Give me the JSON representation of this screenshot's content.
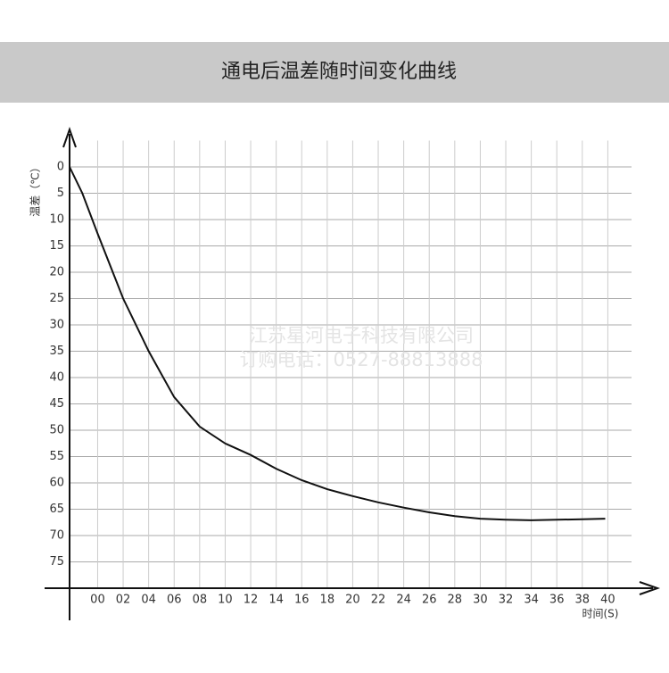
{
  "chart_data": {
    "type": "line",
    "title": "通电后温差随时间变化曲线",
    "y_label": "温差（℃）",
    "x_label": "时间(S)",
    "watermark": [
      "江苏星河电子科技有限公司",
      "订购电话：0527-88813888"
    ],
    "xlim": [
      -2.2,
      42
    ],
    "ylim": [
      -5,
      80
    ],
    "y_inverted": true,
    "grid": true,
    "xticks": [
      {
        "value": 0,
        "label": "00"
      },
      {
        "value": 2,
        "label": "02"
      },
      {
        "value": 4,
        "label": "04"
      },
      {
        "value": 6,
        "label": "06"
      },
      {
        "value": 8,
        "label": "08"
      },
      10,
      12,
      14,
      16,
      18,
      20,
      22,
      24,
      26,
      28,
      30,
      32,
      34,
      36,
      38,
      40
    ],
    "yticks": [
      0,
      5,
      10,
      15,
      20,
      25,
      30,
      35,
      40,
      45,
      50,
      55,
      60,
      65,
      70,
      75
    ],
    "series": [
      {
        "color": "#111111",
        "x": [
          -2.2,
          -1.2,
          0,
          2,
          4,
          6,
          8,
          10,
          12,
          14,
          16,
          18,
          20,
          22,
          24,
          26,
          28,
          30,
          32,
          34,
          36,
          38,
          39.8
        ],
        "values": [
          0,
          5,
          12.7,
          25,
          35,
          43.7,
          49.3,
          52.5,
          54.7,
          57.3,
          59.5,
          61.2,
          62.5,
          63.7,
          64.7,
          65.6,
          66.3,
          66.8,
          67,
          67.1,
          67,
          66.9,
          66.8
        ]
      }
    ]
  }
}
